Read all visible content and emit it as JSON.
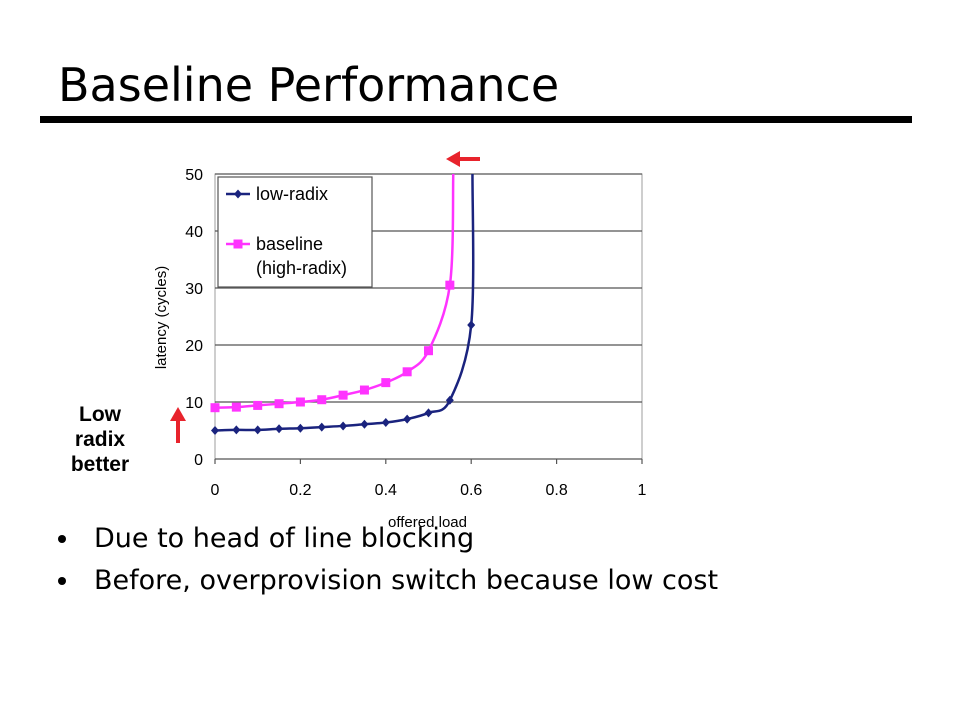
{
  "slide": {
    "title": "Baseline Performance",
    "annotation": [
      "Low",
      "radix",
      "better"
    ],
    "bullets": [
      "Due to head of line blocking",
      "Before, overprovision switch because low cost"
    ]
  },
  "chart_data": {
    "type": "line",
    "xlabel": "offered load",
    "ylabel": "latency (cycles)",
    "xlim": [
      0,
      1
    ],
    "ylim": [
      0,
      50
    ],
    "xticks": [
      "0",
      "0.2",
      "0.4",
      "0.6",
      "0.8",
      "1"
    ],
    "yticks": [
      "0",
      "10",
      "20",
      "30",
      "40",
      "50"
    ],
    "grid": "horizontal",
    "legend_position": "top-left",
    "series": [
      {
        "name": "low-radix",
        "color": "#1a237e",
        "marker": "diamond",
        "x": [
          0,
          0.05,
          0.1,
          0.15,
          0.2,
          0.25,
          0.3,
          0.35,
          0.4,
          0.45,
          0.5,
          0.55,
          0.6,
          0.603
        ],
        "y": [
          5,
          5.1,
          5.1,
          5.3,
          5.4,
          5.6,
          5.8,
          6.1,
          6.4,
          7.0,
          8.1,
          10.3,
          23.5,
          50
        ]
      },
      {
        "name": "baseline\n(high-radix)",
        "color": "#ff33ff",
        "marker": "square",
        "x": [
          0,
          0.05,
          0.1,
          0.15,
          0.2,
          0.25,
          0.3,
          0.35,
          0.4,
          0.45,
          0.5,
          0.55,
          0.558
        ],
        "y": [
          9,
          9.1,
          9.4,
          9.7,
          10.0,
          10.4,
          11.2,
          12.1,
          13.4,
          15.3,
          19.0,
          30.5,
          50
        ]
      }
    ]
  },
  "colors": {
    "arrow": "#e8232c",
    "grid": "#9e9e9e"
  }
}
